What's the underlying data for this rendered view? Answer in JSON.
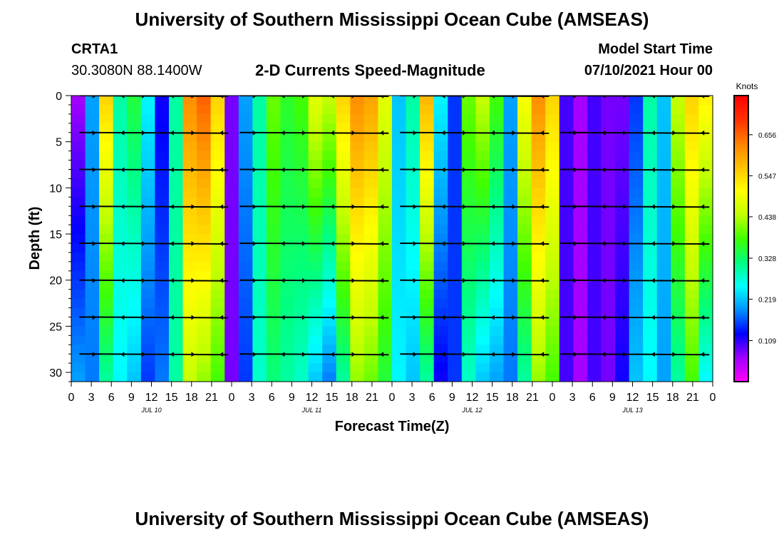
{
  "header": {
    "title": "University of Southern Mississippi Ocean Cube (AMSEAS)",
    "footer_title": "University of Southern Mississippi Ocean Cube (AMSEAS)",
    "station": "CRTA1",
    "coords": "30.3080N  88.1400W",
    "plot_title": "2-D Currents Speed-Magnitude",
    "model_label": "Model Start Time",
    "model_time": "07/10/2021 Hour 00"
  },
  "chart_data": {
    "type": "heatmap",
    "title": "2-D Currents Speed-Magnitude",
    "xlabel": "Forecast Time(Z)",
    "ylabel": "Depth (ft)",
    "xlim_hours": [
      0,
      96
    ],
    "ylim": [
      0,
      31
    ],
    "y_ticks": [
      0,
      5,
      10,
      15,
      20,
      25,
      30
    ],
    "x_tick_labels": [
      "0",
      "3",
      "6",
      "9",
      "12",
      "15",
      "18",
      "21",
      "0",
      "3",
      "6",
      "9",
      "12",
      "15",
      "18",
      "21",
      "0",
      "3",
      "6",
      "9",
      "12",
      "15",
      "18",
      "21",
      "0",
      "3",
      "6",
      "9",
      "12",
      "15",
      "18",
      "21",
      "0"
    ],
    "day_labels": [
      "JUL 10",
      "JUL 11",
      "JUL 12",
      "JUL 13"
    ],
    "colorbar": {
      "unit": "Knots",
      "range": [
        0.0,
        0.76
      ],
      "tick_labels": [
        "0.109",
        "0.219",
        "0.328",
        "0.438",
        "0.547",
        "0.656"
      ],
      "tick_values": [
        0.109,
        0.219,
        0.328,
        0.438,
        0.547,
        0.656
      ],
      "colors": [
        "#ff00ff",
        "#a000ff",
        "#0000ff",
        "#0090ff",
        "#00ffff",
        "#00ff80",
        "#40ff00",
        "#c0ff00",
        "#ffff00",
        "#ffc000",
        "#ff8000",
        "#ff3000",
        "#ff0000"
      ]
    },
    "speed_surface_by_hour": [
      0.06,
      0.2,
      0.55,
      0.3,
      0.35,
      0.25,
      0.12,
      0.3,
      0.62,
      0.66,
      0.55,
      0.08,
      0.2,
      0.3,
      0.4,
      0.36,
      0.38,
      0.48,
      0.45,
      0.55,
      0.62,
      0.6,
      0.48,
      0.22,
      0.3,
      0.58,
      0.25,
      0.15,
      0.4,
      0.45,
      0.38,
      0.2,
      0.5,
      0.62,
      0.55,
      0.1,
      0.06,
      0.1,
      0.08,
      0.08,
      0.15,
      0.3,
      0.22,
      0.45,
      0.55,
      0.52
    ],
    "speed_bottom_by_hour": [
      0.2,
      0.18,
      0.3,
      0.25,
      0.22,
      0.15,
      0.18,
      0.3,
      0.45,
      0.42,
      0.38,
      0.08,
      0.15,
      0.28,
      0.32,
      0.3,
      0.28,
      0.22,
      0.18,
      0.3,
      0.42,
      0.4,
      0.35,
      0.25,
      0.22,
      0.3,
      0.12,
      0.15,
      0.28,
      0.22,
      0.2,
      0.18,
      0.3,
      0.42,
      0.38,
      0.1,
      0.06,
      0.1,
      0.08,
      0.12,
      0.22,
      0.25,
      0.2,
      0.3,
      0.38,
      0.25
    ],
    "vector_depths": [
      0,
      4,
      8,
      12,
      16,
      20,
      24,
      28
    ]
  }
}
